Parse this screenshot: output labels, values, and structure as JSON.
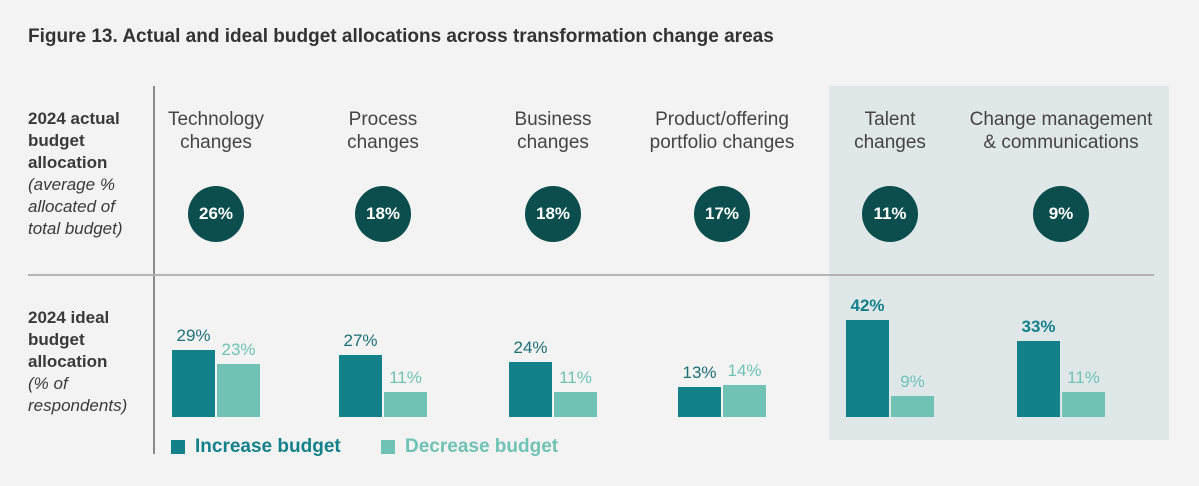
{
  "title": "Figure 13. Actual and ideal budget allocations across transformation change areas",
  "colors": {
    "increase": "#13818a",
    "decrease": "#6fc2b4",
    "circle": "#0c4d4d",
    "highlight": "#dfe7e9"
  },
  "row1": {
    "title_lines": [
      "2024 actual",
      "budget",
      "allocation"
    ],
    "sub_lines": [
      "(average %",
      "allocated of",
      "total budget)"
    ]
  },
  "row2": {
    "title_lines": [
      "2024 ideal",
      "budget",
      "allocation"
    ],
    "sub_lines": [
      "(% of",
      "respondents)"
    ]
  },
  "legend": {
    "increase": "Increase budget",
    "decrease": "Decrease budget"
  },
  "chart_data": {
    "type": "bar",
    "categories": [
      "Technology changes",
      "Process changes",
      "Business changes",
      "Product/offering portfolio changes",
      "Talent changes",
      "Change management & communications"
    ],
    "category_lines": [
      [
        "Technology",
        "changes"
      ],
      [
        "Process",
        "changes"
      ],
      [
        "Business",
        "changes"
      ],
      [
        "Product/offering",
        "portfolio changes"
      ],
      [
        "Talent",
        "changes"
      ],
      [
        "Change management",
        "& communications"
      ]
    ],
    "actual_allocation": [
      "26%",
      "18%",
      "18%",
      "17%",
      "11%",
      "9%"
    ],
    "series": [
      {
        "name": "Increase budget",
        "values": [
          29,
          27,
          24,
          13,
          42,
          33
        ]
      },
      {
        "name": "Decrease budget",
        "values": [
          23,
          11,
          11,
          14,
          9,
          11
        ]
      }
    ],
    "value_labels": [
      [
        "29%",
        "27%",
        "24%",
        "13%",
        "42%",
        "33%"
      ],
      [
        "23%",
        "11%",
        "11%",
        "14%",
        "9%",
        "11%"
      ]
    ],
    "emphasized_categories": [
      "Talent changes",
      "Change management & communications"
    ],
    "ylim": [
      0,
      42
    ]
  }
}
